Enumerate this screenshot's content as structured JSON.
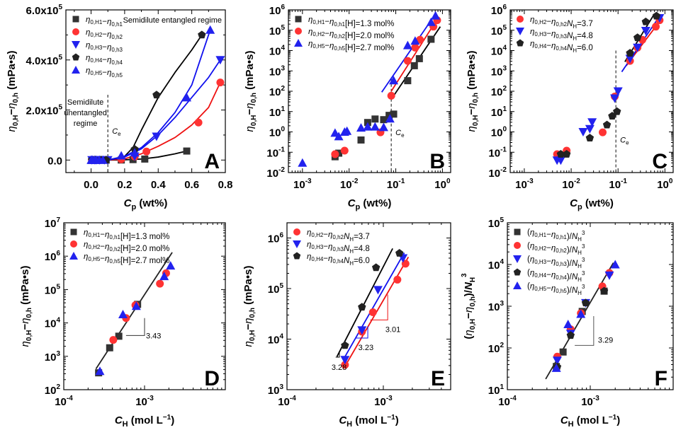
{
  "chart_data": [
    {
      "panel": "A",
      "type": "scatter",
      "xscale": "linear",
      "yscale": "linear",
      "xlim": [
        -0.15,
        0.8
      ],
      "ylim": [
        -50000,
        600000
      ],
      "xticks": [
        0.0,
        0.2,
        0.4,
        0.6
      ],
      "xtick_labels": [
        "0.0",
        "0.2",
        "0.4",
        "0.6",
        "0.8"
      ],
      "xticks_all": [
        0.0,
        0.2,
        0.4,
        0.6,
        0.8
      ],
      "yticks": [
        0,
        200000,
        400000,
        600000
      ],
      "ytick_labels": [
        "0.0",
        "2.0x10^5",
        "4.0x10^5",
        "6.0x10^5"
      ],
      "xlabel": "C_p (wt%)",
      "ylabel": "η0,H−η0,h (mPa•s)",
      "legend_position": "top-left",
      "annotations": [
        {
          "text": "Semidilute entangled regime",
          "at": "top-right"
        },
        {
          "text": "Semidilute",
          "at": "left-middle"
        },
        {
          "text": "unentangled",
          "at": "left-middle"
        },
        {
          "text": "regime",
          "at": "left-middle"
        },
        {
          "text": "C_e",
          "at": "dashed-line",
          "x": 0.1
        }
      ],
      "vline": 0.1,
      "series": [
        {
          "name": "η0,H1−η0,h1",
          "marker": "square",
          "color": "#333333",
          "x": [
            0.005,
            0.01,
            0.02,
            0.03,
            0.05,
            0.07,
            0.09,
            0.18,
            0.25,
            0.32,
            0.57
          ],
          "y": [
            0,
            0,
            0,
            0,
            0,
            0,
            0,
            300,
            1800,
            4000,
            36000
          ],
          "fit_x": [
            0.0,
            0.1,
            0.2,
            0.3,
            0.4,
            0.5,
            0.57
          ],
          "fit_y": [
            0,
            0,
            1000,
            4000,
            12000,
            25000,
            36000
          ]
        },
        {
          "name": "η0,H2−η0,h2",
          "marker": "circle",
          "color": "#ff3333",
          "x": [
            0.005,
            0.008,
            0.02,
            0.05,
            0.08,
            0.18,
            0.26,
            0.33,
            0.64,
            0.77
          ],
          "y": [
            0,
            0,
            0,
            0,
            50,
            3000,
            14000,
            34000,
            150000,
            310000
          ],
          "fit_x": [
            0.0,
            0.1,
            0.2,
            0.3,
            0.4,
            0.5,
            0.6,
            0.7,
            0.77
          ],
          "fit_y": [
            0,
            0,
            5000,
            25000,
            55000,
            90000,
            140000,
            210000,
            310000
          ]
        },
        {
          "name": "η0,H3−η0,h3",
          "marker": "triangle-down",
          "color": "#2222ee",
          "x": [
            0.005,
            0.02,
            0.03,
            0.05,
            0.08,
            0.1,
            0.26,
            0.39,
            0.77
          ],
          "y": [
            0,
            0,
            0,
            0,
            50,
            100,
            15000,
            94000,
            400000
          ],
          "fit_x": [
            0.0,
            0.1,
            0.2,
            0.3,
            0.4,
            0.5,
            0.6,
            0.7,
            0.77
          ],
          "fit_y": [
            0,
            0,
            12000,
            45000,
            100000,
            170000,
            250000,
            330000,
            400000
          ]
        },
        {
          "name": "η0,H4−η0,h4",
          "marker": "pentagon",
          "color": "#222222",
          "x": [
            0.005,
            0.008,
            0.025,
            0.06,
            0.09,
            0.26,
            0.39,
            0.66
          ],
          "y": [
            0,
            0,
            0,
            0,
            10,
            43000,
            260000,
            500000
          ],
          "fit_x": [
            0.0,
            0.1,
            0.2,
            0.25,
            0.3,
            0.4,
            0.5,
            0.6,
            0.66
          ],
          "fit_y": [
            0,
            0,
            15000,
            50000,
            120000,
            250000,
            350000,
            440000,
            500000
          ]
        },
        {
          "name": "η0,H5−η0,h5",
          "marker": "triangle-up",
          "color": "#2222ee",
          "x": [
            0.001,
            0.005,
            0.008,
            0.02,
            0.03,
            0.05,
            0.07,
            0.18,
            0.26,
            0.57,
            0.71
          ],
          "y": [
            0,
            0,
            0,
            0,
            0,
            0,
            0,
            18000,
            30000,
            250000,
            520000
          ],
          "fit_x": [
            0.0,
            0.1,
            0.2,
            0.3,
            0.4,
            0.5,
            0.6,
            0.71
          ],
          "fit_y": [
            0,
            0,
            15000,
            50000,
            110000,
            190000,
            300000,
            520000
          ]
        }
      ]
    },
    {
      "panel": "B",
      "type": "scatter",
      "xscale": "log",
      "yscale": "log",
      "xlim": [
        0.0005,
        1.5
      ],
      "ylim": [
        0.01,
        1000000
      ],
      "xticks": [
        0.001,
        0.01,
        0.1,
        1
      ],
      "xtick_labels": [
        "10^-3",
        "10^-2",
        "10^-1",
        "10^0"
      ],
      "yticks": [
        0.01,
        0.1,
        1,
        10,
        100,
        1000,
        10000,
        100000,
        1000000
      ],
      "ytick_labels": [
        "10^-2",
        "10^-1",
        "10^0",
        "10^1",
        "10^2",
        "10^3",
        "10^4",
        "10^5",
        "10^6"
      ],
      "xlabel": "C_p (wt%)",
      "ylabel": "η0,H−η0,h (mPa•s)",
      "legend_position": "top-left",
      "vline": 0.08,
      "annotations": [
        {
          "text": "C_e",
          "x": 0.08
        }
      ],
      "series": [
        {
          "name": "η0,H1−η0,h1",
          "label": "[H]=1.3 mol%",
          "marker": "square",
          "color": "#333333",
          "x": [
            0.005,
            0.006,
            0.018,
            0.025,
            0.036,
            0.055,
            0.072,
            0.09,
            0.18,
            0.25,
            0.32,
            0.57
          ],
          "y": [
            0.06,
            0.09,
            0.4,
            2.9,
            4.3,
            4.0,
            6.5,
            7.5,
            330,
            1800,
            4000,
            36000
          ],
          "fit_x": [
            0.08,
            0.9
          ],
          "fit_y": [
            40,
            150000
          ]
        },
        {
          "name": "η0,H2−η0,h2",
          "label": "[H]=2.0 mol%",
          "marker": "circle",
          "color": "#ff3333",
          "x": [
            0.005,
            0.008,
            0.047,
            0.08,
            0.18,
            0.26,
            0.33,
            0.64,
            0.77
          ],
          "y": [
            0.08,
            0.12,
            0.95,
            60,
            3100,
            14000,
            34000,
            150000,
            310000
          ],
          "fit_x": [
            0.08,
            0.8
          ],
          "fit_y": [
            100,
            400000
          ]
        },
        {
          "name": "η0,H5−η0,h5",
          "label": "[H]=2.7 mol%",
          "marker": "triangle-up",
          "color": "#2222ee",
          "x": [
            0.001,
            0.005,
            0.006,
            0.008,
            0.009,
            0.018,
            0.025,
            0.036,
            0.055,
            0.075,
            0.09,
            0.18,
            0.26,
            0.57,
            0.71
          ],
          "y": [
            0.03,
            0.9,
            0.6,
            1.0,
            1.1,
            1.6,
            1.8,
            1.8,
            1.7,
            4.5,
            340,
            18000,
            30000,
            250000,
            520000
          ],
          "fit_x": [
            0.05,
            0.7
          ],
          "fit_y": [
            90,
            600000
          ]
        }
      ]
    },
    {
      "panel": "C",
      "type": "scatter",
      "xscale": "log",
      "yscale": "log",
      "xlim": [
        0.0005,
        1.5
      ],
      "ylim": [
        0.01,
        1000000
      ],
      "xticks": [
        0.001,
        0.01,
        0.1,
        1
      ],
      "xtick_labels": [
        "10^-3",
        "10^-2",
        "10^-1",
        "10^0"
      ],
      "yticks": [
        0.01,
        0.1,
        1,
        10,
        100,
        1000,
        10000,
        100000,
        1000000
      ],
      "ytick_labels": [
        "10^-2",
        "10^-1",
        "10^0",
        "10^1",
        "10^2",
        "10^3",
        "10^4",
        "10^5",
        "10^6"
      ],
      "xlabel": "C_p (wt%)",
      "ylabel": "η0,H−η0,h (mPa•s)",
      "legend_position": "top-left",
      "vline": 0.09,
      "annotations": [
        {
          "text": "C_e",
          "x": 0.09
        }
      ],
      "series": [
        {
          "name": "η0,H2−η0,h2",
          "label": "N_H=3.7",
          "marker": "circle",
          "color": "#ff3333",
          "x": [
            0.005,
            0.008,
            0.047,
            0.085,
            0.18,
            0.26,
            0.33,
            0.64,
            0.77
          ],
          "y": [
            0.08,
            0.12,
            0.95,
            55,
            3100,
            14000,
            34000,
            150000,
            310000
          ],
          "fit_x": [
            0.15,
            0.75
          ],
          "fit_y": [
            1800,
            250000
          ]
        },
        {
          "name": "η0,H3−η0,h3",
          "label": "N_H=4.8",
          "marker": "triangle-down",
          "color": "#2222ee",
          "x": [
            0.005,
            0.006,
            0.018,
            0.025,
            0.028,
            0.085,
            0.1,
            0.18,
            0.26,
            0.39,
            0.77
          ],
          "y": [
            0.04,
            0.04,
            1.0,
            1.4,
            3.0,
            45,
            100,
            4000,
            14000,
            94000,
            400000
          ],
          "fit_x": [
            0.12,
            0.75
          ],
          "fit_y": [
            900,
            450000
          ]
        },
        {
          "name": "η0,H4−η0,h4",
          "label": "N_H=6.0",
          "marker": "pentagon",
          "color": "#222222",
          "x": [
            0.006,
            0.008,
            0.025,
            0.058,
            0.075,
            0.095,
            0.18,
            0.26,
            0.39,
            0.66
          ],
          "y": [
            0.08,
            0.08,
            0.5,
            2.2,
            6.0,
            10,
            7500,
            43000,
            260000,
            500000
          ],
          "fit_x": [
            0.14,
            0.6
          ],
          "fit_y": [
            2800,
            650000
          ]
        }
      ]
    },
    {
      "panel": "D",
      "type": "scatter",
      "xscale": "log",
      "yscale": "log",
      "xlim": [
        0.0001,
        0.01
      ],
      "ylim": [
        100,
        10000000
      ],
      "xticks": [
        0.0001,
        0.001
      ],
      "xtick_labels": [
        "10^-4",
        "10^-3"
      ],
      "yticks": [
        100,
        1000,
        10000,
        100000,
        1000000,
        10000000
      ],
      "ytick_labels": [
        "10^2",
        "10^3",
        "10^4",
        "10^5",
        "10^6",
        "10^7"
      ],
      "xlabel": "C_H (mol L^-1)",
      "ylabel": "η0,H−η0,h (mPa•s)",
      "legend_position": "top-left",
      "annotations": [
        {
          "text": "3.43",
          "kind": "slope"
        }
      ],
      "slope": 3.43,
      "series": [
        {
          "name": "η0,H1−η0,h1",
          "label": "[H]=1.3 mol%",
          "marker": "square",
          "color": "#333333",
          "x": [
            0.00027,
            0.00037,
            0.00048,
            0.00082
          ],
          "y": [
            320,
            1800,
            4000,
            36000
          ]
        },
        {
          "name": "η0,H2−η0,h2",
          "label": "[H]=2.0 mol%",
          "marker": "circle",
          "color": "#ff3333",
          "x": [
            0.00041,
            0.00059,
            0.00077,
            0.00155,
            0.00185
          ],
          "y": [
            3100,
            14000,
            34000,
            150000,
            310000
          ]
        },
        {
          "name": "η0,H5−η0,h5",
          "label": "[H]=2.7 mol%",
          "marker": "triangle-up",
          "color": "#2222ee",
          "x": [
            0.00028,
            0.00054,
            0.00079,
            0.00175,
            0.0021
          ],
          "y": [
            360,
            18000,
            32000,
            250000,
            520000
          ]
        }
      ],
      "fit": {
        "x": [
          0.00025,
          0.0022
        ],
        "y": [
          420,
          1300000
        ]
      }
    },
    {
      "panel": "E",
      "type": "scatter",
      "xscale": "log",
      "yscale": "log",
      "xlim": [
        0.0001,
        0.005
      ],
      "ylim": [
        1000,
        2000000
      ],
      "xticks": [
        0.0001,
        0.001
      ],
      "xtick_labels": [
        "10^-4",
        "10^-3"
      ],
      "yticks": [
        1000,
        10000,
        100000,
        1000000
      ],
      "ytick_labels": [
        "10^3",
        "10^4",
        "10^5",
        "10^6"
      ],
      "xlabel": "C_H (mol L^-1)",
      "ylabel": "η0,H−η0,h (mPa•s)",
      "legend_position": "top-left",
      "annotations": [
        {
          "text": "3.01",
          "color": "#ff2222",
          "kind": "slope"
        },
        {
          "text": "3.23",
          "color": "#2222ee",
          "kind": "slope"
        },
        {
          "text": "3.28",
          "color": "#000000",
          "kind": "slope"
        }
      ],
      "series": [
        {
          "name": "η0,H2−η0,h2",
          "label": "N_H=3.7",
          "marker": "circle",
          "color": "#ff3333",
          "x": [
            0.0004,
            0.0006,
            0.00078,
            0.0014,
            0.0017
          ],
          "y": [
            3100,
            14000,
            34000,
            150000,
            310000
          ],
          "fit_x": [
            0.0004,
            0.00182
          ],
          "fit_y": [
            2900,
            420000
          ]
        },
        {
          "name": "η0,H3−η0,h3",
          "label": "N_H=4.8",
          "marker": "triangle-down",
          "color": "#2222ee",
          "x": [
            0.0004,
            0.0006,
            0.00088,
            0.0016
          ],
          "y": [
            3900,
            15000,
            94000,
            400000
          ],
          "fit_x": [
            0.0004,
            0.00165
          ],
          "fit_y": [
            4500,
            510000
          ]
        },
        {
          "name": "η0,H4−η0,h4",
          "label": "N_H=6.0",
          "marker": "pentagon",
          "color": "#222222",
          "x": [
            0.0004,
            0.0006,
            0.00084,
            0.00147
          ],
          "y": [
            7500,
            43000,
            260000,
            500000
          ],
          "fit_x": [
            0.00033,
            0.00125
          ],
          "fit_y": [
            4500,
            620000
          ]
        }
      ]
    },
    {
      "panel": "F",
      "type": "scatter",
      "xscale": "log",
      "yscale": "log",
      "xlim": [
        0.0001,
        0.01
      ],
      "ylim": [
        10,
        100000
      ],
      "xticks": [
        0.0001,
        0.001
      ],
      "xtick_labels": [
        "10^-4",
        "10^-3"
      ],
      "yticks": [
        10,
        100,
        1000,
        10000,
        100000
      ],
      "ytick_labels": [
        "10^1",
        "10^2",
        "10^3",
        "10^4",
        "10^5"
      ],
      "xlabel": "C_H (mol L^-1)",
      "ylabel": "(η0,H−η0,h)/N_H^3",
      "legend_position": "top-left",
      "annotations": [
        {
          "text": "3.29",
          "kind": "slope"
        }
      ],
      "slope": 3.29,
      "series": [
        {
          "name": "(η0,H1−η0,h1)/N_H^3",
          "marker": "square",
          "color": "#333333",
          "x": [
            0.00039,
            0.00047,
            0.0008,
            0.00147
          ],
          "y": [
            36,
            80,
            750,
            2300
          ]
        },
        {
          "name": "(η0,H2−η0,h2)/N_H^3",
          "marker": "circle",
          "color": "#ff3333",
          "x": [
            0.0004,
            0.00058,
            0.00077,
            0.0014,
            0.0017
          ],
          "y": [
            62,
            280,
            680,
            3000,
            6300
          ]
        },
        {
          "name": "(η0,H3−η0,h3)/N_H^3",
          "marker": "triangle-down",
          "color": "#2222ee",
          "x": [
            0.0004,
            0.00058,
            0.00088,
            0.0017
          ],
          "y": [
            50,
            220,
            1200,
            5500
          ]
        },
        {
          "name": "(η0,H4−η0,h4)/N_H^3",
          "marker": "pentagon",
          "color": "#222222",
          "x": [
            0.0004,
            0.00058,
            0.00088,
            0.00147
          ],
          "y": [
            35,
            200,
            1200,
            2300
          ]
        },
        {
          "name": "(η0,H5−η0,h5)/N_H^3",
          "marker": "triangle-up",
          "color": "#2222ee",
          "x": [
            0.00039,
            0.00054,
            0.00077,
            0.002
          ],
          "y": [
            33,
            370,
            650,
            10000
          ]
        }
      ],
      "fit": {
        "x": [
          0.00029,
          0.0019
        ],
        "y": [
          18,
          11000
        ]
      }
    }
  ]
}
